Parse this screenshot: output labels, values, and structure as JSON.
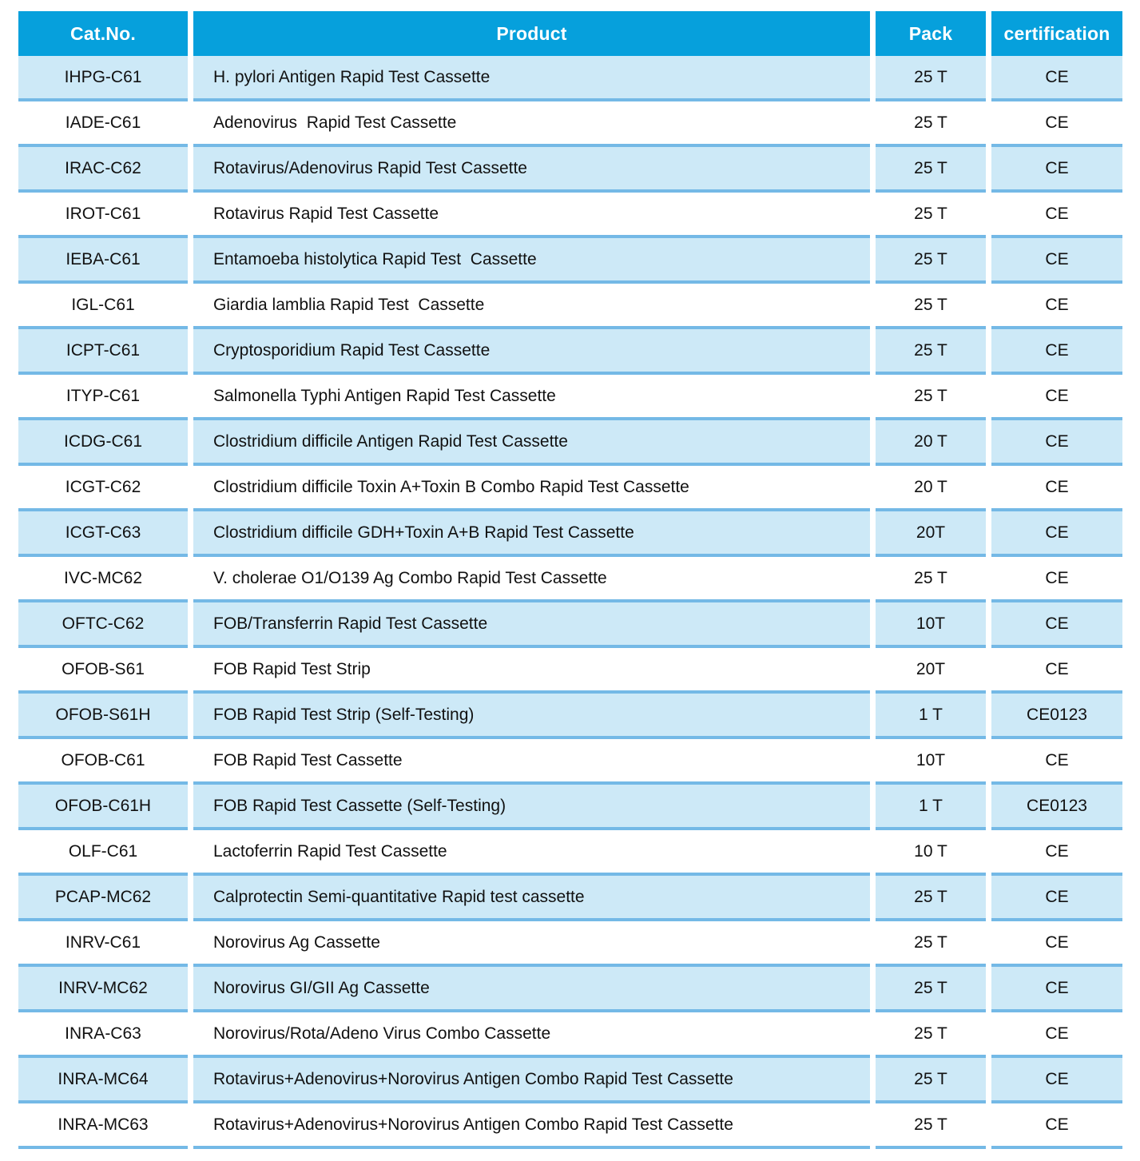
{
  "theme": {
    "header_bg": "#06A0DC",
    "header_text": "#FFFFFF",
    "row_alt_bg": "#CDE9F7",
    "row_bg": "#FFFFFF",
    "row_divider": "#74B9E6",
    "body_text": "#111111"
  },
  "table": {
    "columns": [
      {
        "key": "cat_no",
        "label": "Cat.No."
      },
      {
        "key": "product",
        "label": "Product"
      },
      {
        "key": "pack",
        "label": "Pack"
      },
      {
        "key": "certification",
        "label": "certification"
      }
    ],
    "rows": [
      {
        "cat_no": "IHPG-C61",
        "product": "H. pylori Antigen Rapid Test Cassette",
        "pack": "25 T",
        "certification": "CE"
      },
      {
        "cat_no": "IADE-C61",
        "product": "Adenovirus  Rapid Test Cassette",
        "pack": "25 T",
        "certification": "CE"
      },
      {
        "cat_no": "IRAC-C62",
        "product": "Rotavirus/Adenovirus Rapid Test Cassette",
        "pack": "25 T",
        "certification": "CE"
      },
      {
        "cat_no": "IROT-C61",
        "product": "Rotavirus Rapid Test Cassette",
        "pack": "25 T",
        "certification": "CE"
      },
      {
        "cat_no": "IEBA-C61",
        "product": "Entamoeba histolytica Rapid Test  Cassette",
        "pack": "25 T",
        "certification": "CE"
      },
      {
        "cat_no": "IGL-C61",
        "product": "Giardia lamblia Rapid Test  Cassette",
        "pack": "25 T",
        "certification": "CE"
      },
      {
        "cat_no": "ICPT-C61",
        "product": "Cryptosporidium Rapid Test Cassette",
        "pack": "25 T",
        "certification": "CE"
      },
      {
        "cat_no": "ITYP-C61",
        "product": "Salmonella Typhi Antigen Rapid Test Cassette",
        "pack": "25 T",
        "certification": "CE"
      },
      {
        "cat_no": "ICDG-C61",
        "product": "Clostridium difficile Antigen Rapid Test Cassette",
        "pack": "20 T",
        "certification": "CE"
      },
      {
        "cat_no": "ICGT-C62",
        "product": "Clostridium difficile Toxin A+Toxin B Combo Rapid Test Cassette",
        "pack": "20 T",
        "certification": "CE"
      },
      {
        "cat_no": "ICGT-C63",
        "product": "Clostridium difficile GDH+Toxin A+B Rapid Test Cassette",
        "pack": "20T",
        "certification": "CE"
      },
      {
        "cat_no": "IVC-MC62",
        "product": "V. cholerae O1/O139 Ag Combo Rapid Test Cassette",
        "pack": "25 T",
        "certification": "CE"
      },
      {
        "cat_no": "OFTC-C62",
        "product": "FOB/Transferrin Rapid Test Cassette",
        "pack": "10T",
        "certification": "CE"
      },
      {
        "cat_no": "OFOB-S61",
        "product": "FOB Rapid Test Strip",
        "pack": "20T",
        "certification": "CE"
      },
      {
        "cat_no": "OFOB-S61H",
        "product": "FOB Rapid Test Strip (Self-Testing)",
        "pack": "1 T",
        "certification": "CE0123"
      },
      {
        "cat_no": "OFOB-C61",
        "product": "FOB Rapid Test Cassette",
        "pack": "10T",
        "certification": "CE"
      },
      {
        "cat_no": "OFOB-C61H",
        "product": "FOB Rapid Test Cassette (Self-Testing)",
        "pack": "1 T",
        "certification": "CE0123"
      },
      {
        "cat_no": "OLF-C61",
        "product": "Lactoferrin Rapid Test Cassette",
        "pack": "10 T",
        "certification": "CE"
      },
      {
        "cat_no": "PCAP-MC62",
        "product": "Calprotectin Semi-quantitative Rapid test cassette",
        "pack": "25 T",
        "certification": "CE"
      },
      {
        "cat_no": "INRV-C61",
        "product": "Norovirus Ag Cassette",
        "pack": "25 T",
        "certification": "CE"
      },
      {
        "cat_no": "INRV-MC62",
        "product": "Norovirus GI/GII Ag Cassette",
        "pack": "25 T",
        "certification": "CE"
      },
      {
        "cat_no": "INRA-C63",
        "product": "Norovirus/Rota/Adeno Virus Combo Cassette",
        "pack": "25 T",
        "certification": "CE"
      },
      {
        "cat_no": "INRA-MC64",
        "product": "Rotavirus+Adenovirus+Norovirus Antigen Combo Rapid Test Cassette",
        "pack": "25 T",
        "certification": "CE"
      },
      {
        "cat_no": "INRA-MC63",
        "product": "Rotavirus+Adenovirus+Norovirus Antigen Combo Rapid Test Cassette",
        "pack": "25 T",
        "certification": "CE"
      }
    ]
  }
}
